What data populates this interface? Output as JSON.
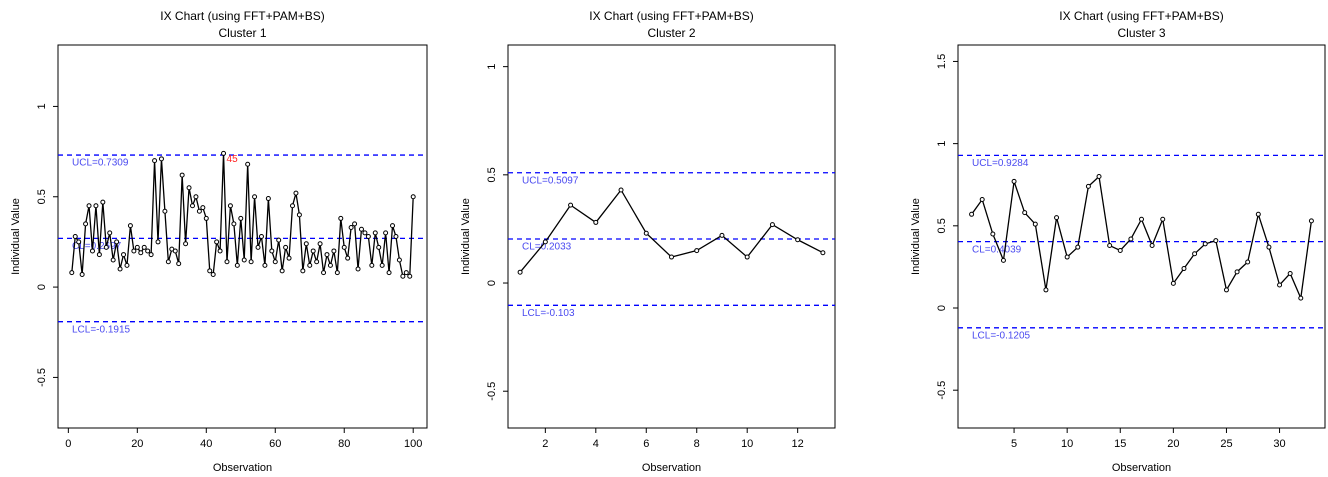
{
  "chart_data": [
    {
      "type": "line",
      "title": "IX Chart (using FFT+PAM+BS)",
      "subtitle": "Cluster 1",
      "x_label": "Observation",
      "y_label": "Individual Value",
      "color": "#000000",
      "x": [
        1,
        2,
        3,
        4,
        5,
        6,
        7,
        8,
        9,
        10,
        11,
        12,
        13,
        14,
        15,
        16,
        17,
        18,
        19,
        20,
        21,
        22,
        23,
        24,
        25,
        26,
        27,
        28,
        29,
        30,
        31,
        32,
        33,
        34,
        35,
        36,
        37,
        38,
        39,
        40,
        41,
        42,
        43,
        44,
        45,
        46,
        47,
        48,
        49,
        50,
        51,
        52,
        53,
        54,
        55,
        56,
        57,
        58,
        59,
        60,
        61,
        62,
        63,
        64,
        65,
        66,
        67,
        68,
        69,
        70,
        71,
        72,
        73,
        74,
        75,
        76,
        77,
        78,
        79,
        80,
        81,
        82,
        83,
        84,
        85,
        86,
        87,
        88,
        89,
        90,
        91,
        92,
        93,
        94,
        95,
        96,
        97,
        98,
        99,
        100
      ],
      "values": [
        0.08,
        0.28,
        0.25,
        0.07,
        0.35,
        0.45,
        0.2,
        0.45,
        0.18,
        0.47,
        0.22,
        0.3,
        0.15,
        0.25,
        0.1,
        0.18,
        0.12,
        0.34,
        0.2,
        0.22,
        0.19,
        0.22,
        0.2,
        0.18,
        0.7,
        0.25,
        0.71,
        0.42,
        0.14,
        0.21,
        0.2,
        0.13,
        0.62,
        0.24,
        0.55,
        0.45,
        0.5,
        0.42,
        0.44,
        0.38,
        0.09,
        0.07,
        0.25,
        0.2,
        0.74,
        0.14,
        0.45,
        0.35,
        0.12,
        0.38,
        0.15,
        0.68,
        0.14,
        0.5,
        0.22,
        0.28,
        0.12,
        0.49,
        0.2,
        0.14,
        0.26,
        0.09,
        0.22,
        0.16,
        0.45,
        0.52,
        0.4,
        0.09,
        0.24,
        0.12,
        0.2,
        0.14,
        0.24,
        0.08,
        0.18,
        0.12,
        0.2,
        0.08,
        0.38,
        0.22,
        0.16,
        0.33,
        0.35,
        0.1,
        0.32,
        0.3,
        0.28,
        0.12,
        0.3,
        0.22,
        0.12,
        0.3,
        0.08,
        0.34,
        0.28,
        0.15,
        0.06,
        0.08,
        0.06,
        0.5
      ],
      "xlim": [
        -3,
        104
      ],
      "xticks": [
        0,
        20,
        40,
        60,
        80,
        100
      ],
      "ylim": [
        -0.78,
        1.34
      ],
      "yticks": [
        -0.5,
        0.0,
        0.5,
        1.0
      ],
      "reference_lines": [
        {
          "label": "UCL=0.7309",
          "value": 0.7309
        },
        {
          "label": "CL=0.2697",
          "value": 0.2697
        },
        {
          "label": "LCL=-0.1915",
          "value": -0.1915
        }
      ],
      "reference_color": "#0000ff",
      "annotations": [
        {
          "label": "45",
          "x": 45
        }
      ]
    },
    {
      "type": "line",
      "title": "IX Chart (using FFT+PAM+BS)",
      "subtitle": "Cluster 2",
      "x_label": "Observation",
      "y_label": "Individual Value",
      "color": "#000000",
      "x": [
        1,
        2,
        3,
        4,
        5,
        6,
        7,
        8,
        9,
        10,
        11,
        12,
        13
      ],
      "values": [
        0.05,
        0.19,
        0.36,
        0.28,
        0.43,
        0.23,
        0.12,
        0.15,
        0.22,
        0.12,
        0.27,
        0.2,
        0.14
      ],
      "xlim": [
        0.52,
        13.48
      ],
      "xticks": [
        2,
        4,
        6,
        8,
        10,
        12
      ],
      "ylim": [
        -0.67,
        1.1
      ],
      "yticks": [
        -0.5,
        0.0,
        0.5,
        1.0
      ],
      "reference_lines": [
        {
          "label": "UCL=0.5097",
          "value": 0.5097
        },
        {
          "label": "CL=0.2033",
          "value": 0.2033
        },
        {
          "label": "LCL=-0.103",
          "value": -0.103
        }
      ],
      "reference_color": "#0000ff"
    },
    {
      "type": "line",
      "title": "IX Chart (using FFT+PAM+BS)",
      "subtitle": "Cluster 3",
      "x_label": "Observation",
      "y_label": "Individual Value",
      "color": "#000000",
      "x": [
        1,
        2,
        3,
        4,
        5,
        6,
        7,
        8,
        9,
        10,
        11,
        12,
        13,
        14,
        15,
        16,
        17,
        18,
        19,
        20,
        21,
        22,
        23,
        24,
        25,
        26,
        27,
        28,
        29,
        30,
        31,
        32,
        33
      ],
      "values": [
        0.57,
        0.66,
        0.45,
        0.29,
        0.77,
        0.58,
        0.51,
        0.11,
        0.55,
        0.31,
        0.37,
        0.74,
        0.8,
        0.38,
        0.35,
        0.42,
        0.54,
        0.38,
        0.54,
        0.15,
        0.24,
        0.33,
        0.39,
        0.41,
        0.11,
        0.22,
        0.28,
        0.57,
        0.37,
        0.14,
        0.21,
        0.06,
        0.53
      ],
      "xlim": [
        -0.28,
        34.28
      ],
      "xticks": [
        5,
        10,
        15,
        20,
        25,
        30
      ],
      "ylim": [
        -0.73,
        1.6
      ],
      "yticks": [
        -0.5,
        0.0,
        0.5,
        1.0,
        1.5
      ],
      "reference_lines": [
        {
          "label": "UCL=0.9284",
          "value": 0.9284
        },
        {
          "label": "CL=0.4039",
          "value": 0.4039
        },
        {
          "label": "LCL=-0.1205",
          "value": -0.1205
        }
      ],
      "reference_color": "#0000ff"
    }
  ]
}
